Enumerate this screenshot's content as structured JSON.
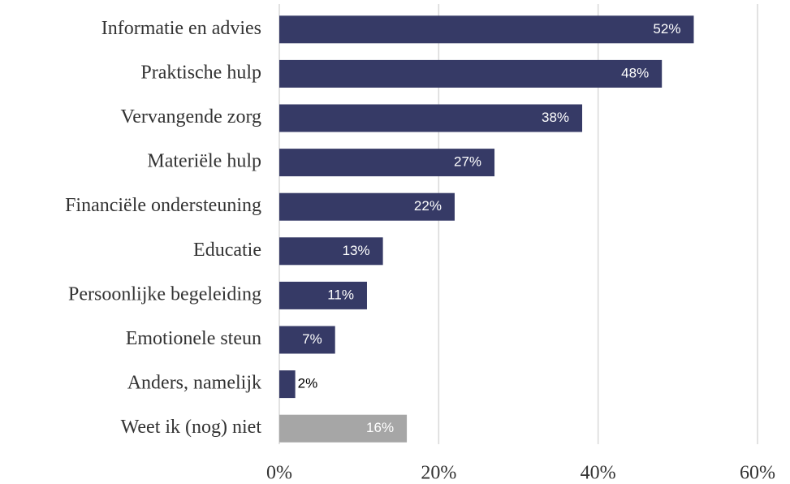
{
  "chart_data": {
    "type": "barh",
    "categories": [
      "Informatie en advies",
      "Praktische hulp",
      "Vervangende zorg",
      "Materiële hulp",
      "Financiële ondersteuning",
      "Educatie",
      "Persoonlijke begeleiding",
      "Emotionele steun",
      "Anders, namelijk",
      "Weet ik (nog) niet"
    ],
    "values": [
      52,
      48,
      38,
      27,
      22,
      13,
      11,
      7,
      2,
      16
    ],
    "value_labels": [
      "52%",
      "48%",
      "38%",
      "27%",
      "22%",
      "13%",
      "11%",
      "7%",
      "2%",
      "16%"
    ],
    "colors": [
      "#363a66",
      "#363a66",
      "#363a66",
      "#363a66",
      "#363a66",
      "#363a66",
      "#363a66",
      "#363a66",
      "#363a66",
      "#a6a6a6"
    ],
    "xlim": [
      0,
      60
    ],
    "xticks": [
      {
        "value": 0,
        "label": "0%"
      },
      {
        "value": 20,
        "label": "20%"
      },
      {
        "value": 40,
        "label": "40%"
      },
      {
        "value": 60,
        "label": "60%"
      }
    ],
    "grid": true
  }
}
